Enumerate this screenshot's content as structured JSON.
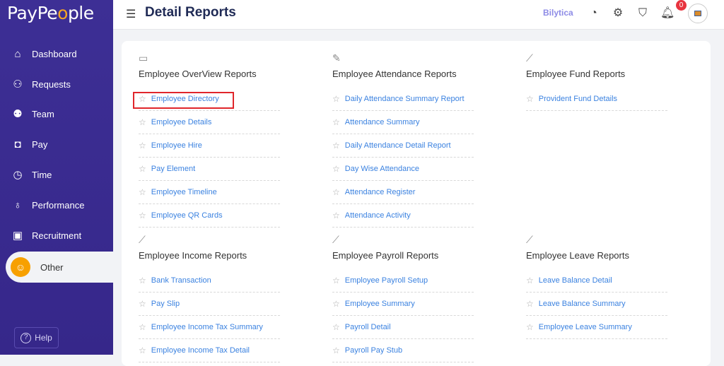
{
  "app": {
    "logo_text": "PayPeople",
    "page_title": "Detail Reports",
    "brand_link": "Bilytica",
    "notification_count": "0"
  },
  "sidebar": {
    "items": [
      {
        "label": "Dashboard",
        "icon": "home-icon"
      },
      {
        "label": "Requests",
        "icon": "user-question-icon"
      },
      {
        "label": "Team",
        "icon": "team-icon"
      },
      {
        "label": "Pay",
        "icon": "wallet-icon"
      },
      {
        "label": "Time",
        "icon": "clock-icon"
      },
      {
        "label": "Performance",
        "icon": "award-icon"
      },
      {
        "label": "Recruitment",
        "icon": "briefcase-icon"
      }
    ],
    "active": {
      "label": "Other",
      "icon": "user-icon"
    },
    "help_label": "Help"
  },
  "sections": [
    {
      "title": "Employee OverView Reports",
      "icon": "id-card-icon",
      "items": [
        "Employee Directory",
        "Employee Details",
        "Employee Hire",
        "Pay Element",
        "Employee Timeline",
        "Employee QR Cards"
      ]
    },
    {
      "title": "Employee Attendance Reports",
      "icon": "clipboard-check-icon",
      "items": [
        "Daily Attendance Summary Report",
        "Attendance Summary",
        "Daily Attendance Detail Report",
        "Day Wise Attendance",
        "Attendance Register",
        "Attendance Activity"
      ]
    },
    {
      "title": "Employee Fund Reports",
      "icon": "trend-icon",
      "items": [
        "Provident Fund Details"
      ]
    },
    {
      "title": "Employee Income Reports",
      "icon": "trend-icon",
      "items": [
        "Bank Transaction",
        "Pay Slip",
        "Employee Income Tax Summary",
        "Employee Income Tax Detail"
      ]
    },
    {
      "title": "Employee Payroll Reports",
      "icon": "trend-icon",
      "items": [
        "Employee Payroll Setup",
        "Employee Summary",
        "Payroll Detail",
        "Payroll Pay Stub"
      ]
    },
    {
      "title": "Employee Leave Reports",
      "icon": "trend-icon",
      "items": [
        "Leave Balance Detail",
        "Leave Balance Summary",
        "Employee Leave Summary"
      ]
    }
  ],
  "highlighted_item": "Employee Directory",
  "colors": {
    "sidebar": "#3d2f95",
    "accent": "#f7a000",
    "link": "#3b82e0",
    "highlight": "#e0262b"
  }
}
